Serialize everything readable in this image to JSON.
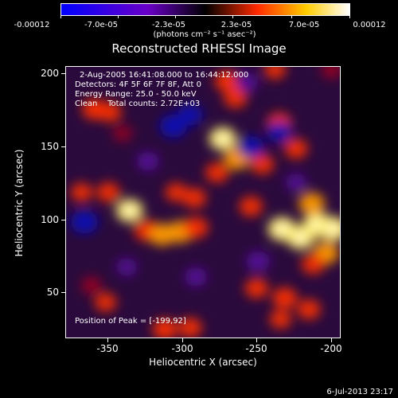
{
  "colorbar": {
    "ticks": [
      "-0.00012",
      "-7.0e-05",
      "-2.3e-05",
      "2.3e-05",
      "7.0e-05",
      "0.00012"
    ],
    "unit_label": "(photons cm⁻² s⁻¹ asec⁻²)",
    "colors": [
      "#0000ff",
      "#6a00c8",
      "#000000",
      "#ff2a00",
      "#ffcc00",
      "#ffffff"
    ]
  },
  "title": "Reconstructed RHESSI Image",
  "info": {
    "line1": "2-Aug-2005 16:41:08.000 to 16:44:12.000",
    "line2": "Detectors: 4F 5F 6F 7F 8F, Att 0",
    "line3": "Energy Range: 25.0 - 50.0 keV",
    "line4": "Clean    Total counts: 2.72E+03",
    "peak": "Position of Peak = [-199,92]"
  },
  "axes": {
    "x_title": "Heliocentric X (arcsec)",
    "y_title": "Heliocentric Y (arcsec)",
    "x_ticks": [
      "-350",
      "-300",
      "-250",
      "-200"
    ],
    "y_ticks": [
      "200",
      "150",
      "100",
      "50"
    ]
  },
  "footer": "6-Jul-2013 23:17",
  "image": {
    "blobs": [
      {
        "x": -368,
        "y": 177,
        "v": 0.7
      },
      {
        "x": -357,
        "y": 175,
        "v": 0.6
      },
      {
        "x": -348,
        "y": 160,
        "v": 0.3
      },
      {
        "x": -343,
        "y": 105,
        "v": 0.9
      },
      {
        "x": -358,
        "y": 118,
        "v": 0.6
      },
      {
        "x": -377,
        "y": 118,
        "v": 0.5
      },
      {
        "x": -331,
        "y": 91,
        "v": 0.7
      },
      {
        "x": -320,
        "y": 88,
        "v": 0.8
      },
      {
        "x": -307,
        "y": 90,
        "v": 0.8
      },
      {
        "x": -296,
        "y": 93,
        "v": 0.7
      },
      {
        "x": -297,
        "y": 114,
        "v": 0.6
      },
      {
        "x": -310,
        "y": 118,
        "v": 0.5
      },
      {
        "x": -274,
        "y": 197,
        "v": 0.7
      },
      {
        "x": -268,
        "y": 185,
        "v": 0.6
      },
      {
        "x": -277,
        "y": 156,
        "v": 0.9
      },
      {
        "x": -267,
        "y": 142,
        "v": 0.8
      },
      {
        "x": -281,
        "y": 132,
        "v": 0.6
      },
      {
        "x": -249,
        "y": 138,
        "v": 0.6
      },
      {
        "x": -257,
        "y": 108,
        "v": 0.6
      },
      {
        "x": -237,
        "y": 167,
        "v": 0.7
      },
      {
        "x": -225,
        "y": 149,
        "v": 0.6
      },
      {
        "x": -235,
        "y": 92,
        "v": 0.95
      },
      {
        "x": -222,
        "y": 86,
        "v": 0.95
      },
      {
        "x": -210,
        "y": 95,
        "v": 1.0
      },
      {
        "x": -199,
        "y": 92,
        "v": 1.0
      },
      {
        "x": -214,
        "y": 110,
        "v": 0.8
      },
      {
        "x": -204,
        "y": 75,
        "v": 0.8
      },
      {
        "x": -213,
        "y": 67,
        "v": 0.6
      },
      {
        "x": -253,
        "y": 50,
        "v": 0.6
      },
      {
        "x": -233,
        "y": 43,
        "v": 0.7
      },
      {
        "x": -216,
        "y": 35,
        "v": 0.6
      },
      {
        "x": -236,
        "y": 28,
        "v": 0.5
      },
      {
        "x": -318,
        "y": 21,
        "v": 0.7
      },
      {
        "x": -300,
        "y": 22,
        "v": 0.6
      },
      {
        "x": -360,
        "y": 40,
        "v": 0.5
      },
      {
        "x": -370,
        "y": 52,
        "v": 0.4
      },
      {
        "x": -240,
        "y": 205,
        "v": 0.5
      },
      {
        "x": -200,
        "y": 205,
        "v": 0.4
      },
      {
        "x": -375,
        "y": 97,
        "v": -0.9
      },
      {
        "x": -312,
        "y": 165,
        "v": -0.9
      },
      {
        "x": -300,
        "y": 173,
        "v": -0.7
      },
      {
        "x": -257,
        "y": 150,
        "v": -0.8
      },
      {
        "x": -237,
        "y": 161,
        "v": -0.7
      },
      {
        "x": -252,
        "y": 69,
        "v": -0.6
      },
      {
        "x": -296,
        "y": 58,
        "v": -0.5
      },
      {
        "x": -260,
        "y": 196,
        "v": -0.5
      },
      {
        "x": -330,
        "y": 140,
        "v": -0.5
      },
      {
        "x": -345,
        "y": 65,
        "v": -0.4
      },
      {
        "x": -225,
        "y": 125,
        "v": -0.4
      }
    ]
  }
}
